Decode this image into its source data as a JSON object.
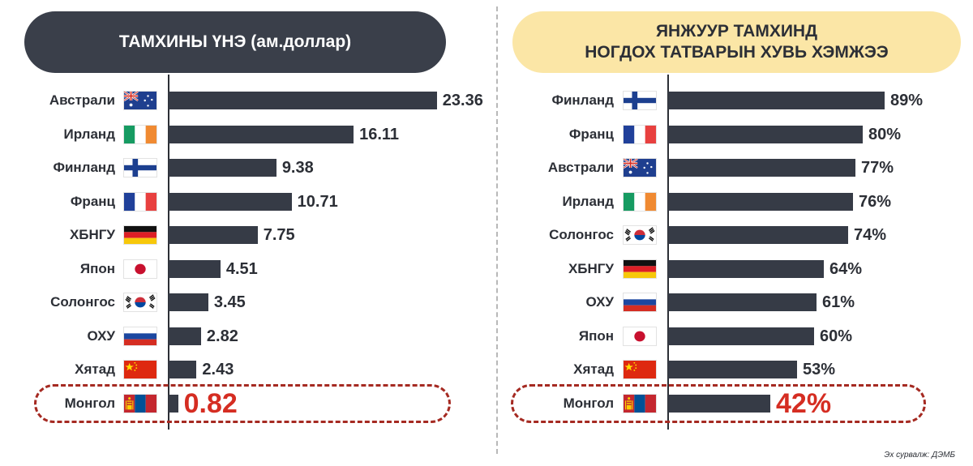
{
  "colors": {
    "bar": "#363b46",
    "highlight": "#d52d22",
    "left_title_bg": "#3a3f4a",
    "right_title_bg": "#fbe6a6"
  },
  "source": "Эх сурвалж: ДЭМБ",
  "chart_data": [
    {
      "type": "bar",
      "orientation": "horizontal",
      "title": "ТАМХИНЫ ҮНЭ (ам.доллар)",
      "categories": [
        "Австрали",
        "Ирланд",
        "Финланд",
        "Франц",
        "ХБНГУ",
        "Япон",
        "Солонгос",
        "ОХУ",
        "Хятад",
        "Монгол"
      ],
      "values": [
        23.36,
        16.11,
        9.38,
        10.71,
        7.75,
        4.51,
        3.45,
        2.82,
        2.43,
        0.82
      ],
      "labels": [
        "23.36",
        "16.11",
        "9.38",
        "10.71",
        "7.75",
        "4.51",
        "3.45",
        "2.82",
        "2.43",
        "0.82"
      ],
      "flags": [
        "australia-flag",
        "ireland-flag",
        "finland-flag",
        "france-flag",
        "germany-flag",
        "japan-flag",
        "korea-flag",
        "russia-flag",
        "china-flag",
        "mongolia-flag"
      ],
      "highlight_index": 9,
      "xlim": [
        0,
        25
      ]
    },
    {
      "type": "bar",
      "orientation": "horizontal",
      "title": "ЯНЖУУР ТАМХИНД НОГДОХ ТАТВАРЫН ХУВЬ ХЭМЖЭЭ",
      "title_lines": [
        "ЯНЖУУР ТАМХИНД",
        "НОГДОХ ТАТВАРЫН ХУВЬ ХЭМЖЭЭ"
      ],
      "categories": [
        "Финланд",
        "Франц",
        "Австрали",
        "Ирланд",
        "Солонгос",
        "ХБНГУ",
        "ОХУ",
        "Япон",
        "Хятад",
        "Монгол"
      ],
      "values": [
        89,
        80,
        77,
        76,
        74,
        64,
        61,
        60,
        53,
        42
      ],
      "labels": [
        "89%",
        "80%",
        "77%",
        "76%",
        "74%",
        "64%",
        "61%",
        "60%",
        "53%",
        "42%"
      ],
      "flags": [
        "finland-flag",
        "france-flag",
        "australia-flag",
        "ireland-flag",
        "korea-flag",
        "germany-flag",
        "russia-flag",
        "japan-flag",
        "china-flag",
        "mongolia-flag"
      ],
      "highlight_index": 9,
      "xlim": [
        0,
        100
      ]
    }
  ]
}
